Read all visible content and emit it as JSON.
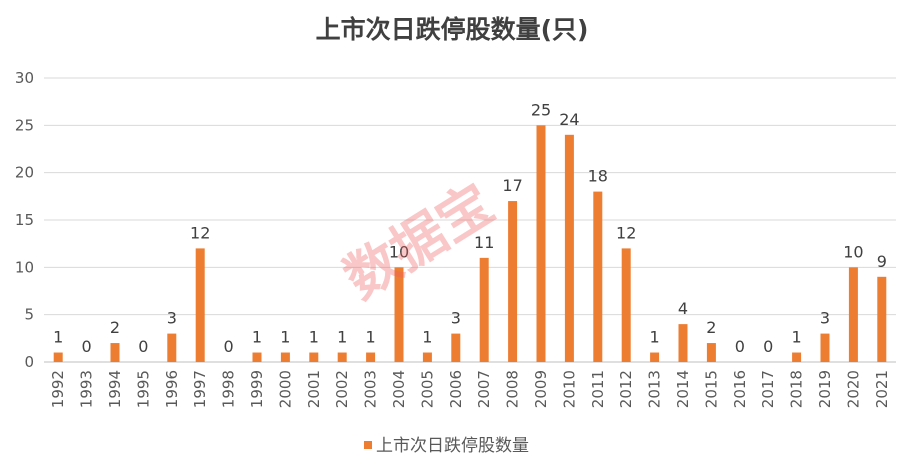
{
  "chart_data": {
    "type": "bar",
    "title": "上市次日跌停股数量(只)",
    "categories": [
      "1992",
      "1993",
      "1994",
      "1995",
      "1996",
      "1997",
      "1998",
      "1999",
      "2000",
      "2001",
      "2002",
      "2003",
      "2004",
      "2005",
      "2006",
      "2007",
      "2008",
      "2009",
      "2010",
      "2011",
      "2012",
      "2013",
      "2014",
      "2015",
      "2016",
      "2017",
      "2018",
      "2019",
      "2020",
      "2021"
    ],
    "series": [
      {
        "name": "上市次日跌停股数量",
        "values": [
          1,
          0,
          2,
          0,
          3,
          12,
          0,
          1,
          1,
          1,
          1,
          1,
          10,
          1,
          3,
          11,
          17,
          25,
          24,
          18,
          12,
          1,
          4,
          2,
          0,
          0,
          1,
          3,
          10,
          9
        ]
      }
    ],
    "ylim": [
      0,
      30
    ],
    "yticks": [
      0,
      5,
      10,
      15,
      20,
      25,
      30
    ],
    "grid": true,
    "legend_position": "bottom",
    "bar_color": "#ed7d31",
    "watermark": "数据宝"
  }
}
